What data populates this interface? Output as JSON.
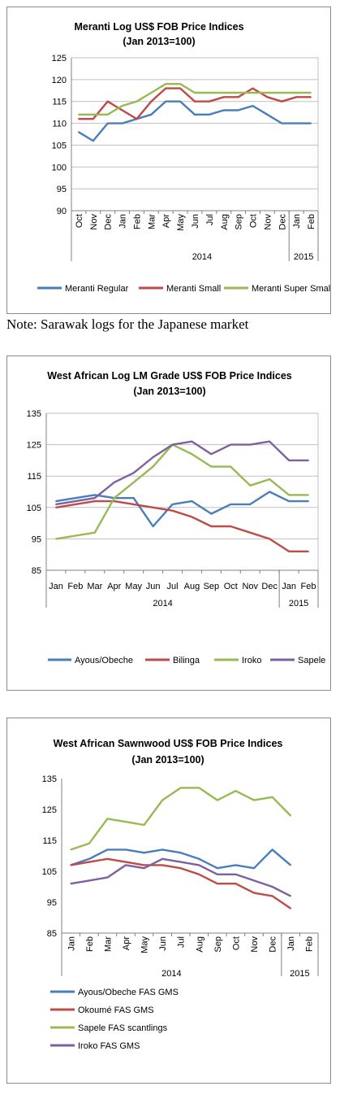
{
  "note": "Note: Sarawak logs for the Japanese market",
  "colors": {
    "blue": "#4a7ebb",
    "red": "#be4b48",
    "green": "#98b954",
    "purple": "#7d60a0",
    "grid": "#bfbfbf"
  },
  "chart_data": [
    {
      "type": "line",
      "title": "Meranti Log US$ FOB Price Indices",
      "subtitle": "(Jan 2013=100)",
      "xlabel": "",
      "ylabel": "",
      "categories": [
        "Oct",
        "Nov",
        "Dec",
        "Jan",
        "Feb",
        "Mar",
        "Apr",
        "May",
        "Jun",
        "Jul",
        "Aug",
        "Sep",
        "Oct",
        "Nov",
        "Dec",
        "Jan",
        "Feb"
      ],
      "year_groups": [
        {
          "label": "2014",
          "from": 3,
          "to": 14
        },
        {
          "label": "2015",
          "from": 15,
          "to": 16
        }
      ],
      "yticks": [
        90,
        95,
        100,
        105,
        110,
        115,
        120,
        125
      ],
      "ylim": [
        90,
        125
      ],
      "grid": true,
      "legend_position": "bottom",
      "series": [
        {
          "name": "Meranti Regular",
          "color": "#4a7ebb",
          "values": [
            108,
            106,
            110,
            110,
            111,
            112,
            115,
            115,
            112,
            112,
            113,
            113,
            114,
            112,
            110,
            110,
            110
          ]
        },
        {
          "name": "Meranti Small",
          "color": "#be4b48",
          "values": [
            111,
            111,
            115,
            113,
            111,
            115,
            118,
            118,
            115,
            115,
            116,
            116,
            118,
            116,
            115,
            116,
            116
          ]
        },
        {
          "name": "Meranti Super Small",
          "color": "#98b954",
          "values": [
            112,
            112,
            112,
            114,
            115,
            117,
            119,
            119,
            117,
            117,
            117,
            117,
            117,
            117,
            117,
            117,
            117
          ]
        }
      ]
    },
    {
      "type": "line",
      "title": "West African Log LM Grade US$ FOB Price Indices",
      "subtitle": "(Jan 2013=100)",
      "xlabel": "",
      "ylabel": "",
      "categories": [
        "Jan",
        "Feb",
        "Mar",
        "Apr",
        "May",
        "Jun",
        "Jul",
        "Aug",
        "Sep",
        "Oct",
        "Nov",
        "Dec",
        "Jan",
        "Feb"
      ],
      "year_groups": [
        {
          "label": "2014",
          "from": 0,
          "to": 11
        },
        {
          "label": "2015",
          "from": 12,
          "to": 13
        }
      ],
      "yticks": [
        85,
        95,
        105,
        115,
        125,
        135
      ],
      "ylim": [
        85,
        135
      ],
      "grid": true,
      "legend_position": "bottom",
      "series": [
        {
          "name": "Ayous/Obeche",
          "color": "#4a7ebb",
          "values": [
            107,
            108,
            109,
            108,
            108,
            99,
            106,
            107,
            103,
            106,
            106,
            110,
            107,
            107
          ]
        },
        {
          "name": "Bilinga",
          "color": "#be4b48",
          "values": [
            105,
            106,
            107,
            107,
            106,
            105,
            104,
            102,
            99,
            99,
            97,
            95,
            91,
            91
          ]
        },
        {
          "name": "Iroko",
          "color": "#98b954",
          "values": [
            95,
            96,
            97,
            108,
            113,
            118,
            125,
            122,
            118,
            118,
            112,
            114,
            109,
            109
          ]
        },
        {
          "name": "Sapele",
          "color": "#7d60a0",
          "values": [
            106,
            107,
            108,
            113,
            116,
            121,
            125,
            126,
            122,
            125,
            125,
            126,
            120,
            120
          ]
        }
      ]
    },
    {
      "type": "line",
      "title": "West African Sawnwood US$ FOB Price Indices",
      "subtitle": "(Jan 2013=100)",
      "xlabel": "",
      "ylabel": "",
      "categories": [
        "Jan",
        "Feb",
        "Mar",
        "Apr",
        "May",
        "Jun",
        "Jul",
        "Aug",
        "Sep",
        "Oct",
        "Nov",
        "Dec",
        "Jan",
        "Feb"
      ],
      "year_groups": [
        {
          "label": "2014",
          "from": 0,
          "to": 11
        },
        {
          "label": "2015",
          "from": 12,
          "to": 13
        }
      ],
      "yticks": [
        85,
        95,
        105,
        115,
        125,
        135
      ],
      "ylim": [
        85,
        135
      ],
      "grid": false,
      "legend_position": "bottom",
      "series": [
        {
          "name": "Ayous/Obeche  FAS GMS",
          "color": "#4a7ebb",
          "values": [
            107,
            109,
            112,
            112,
            111,
            112,
            111,
            109,
            106,
            107,
            106,
            112,
            107,
            null
          ]
        },
        {
          "name": "Okoumé  FAS GMS",
          "color": "#be4b48",
          "values": [
            107,
            108,
            109,
            108,
            107,
            107,
            106,
            104,
            101,
            101,
            98,
            97,
            93,
            null
          ]
        },
        {
          "name": "Sapele FAS scantlings",
          "color": "#98b954",
          "values": [
            112,
            114,
            122,
            121,
            120,
            128,
            132,
            132,
            128,
            131,
            128,
            129,
            123,
            null
          ]
        },
        {
          "name": "Iroko FAS GMS",
          "color": "#7d60a0",
          "values": [
            101,
            102,
            103,
            107,
            106,
            109,
            108,
            107,
            104,
            104,
            102,
            100,
            97,
            null
          ]
        }
      ]
    }
  ]
}
